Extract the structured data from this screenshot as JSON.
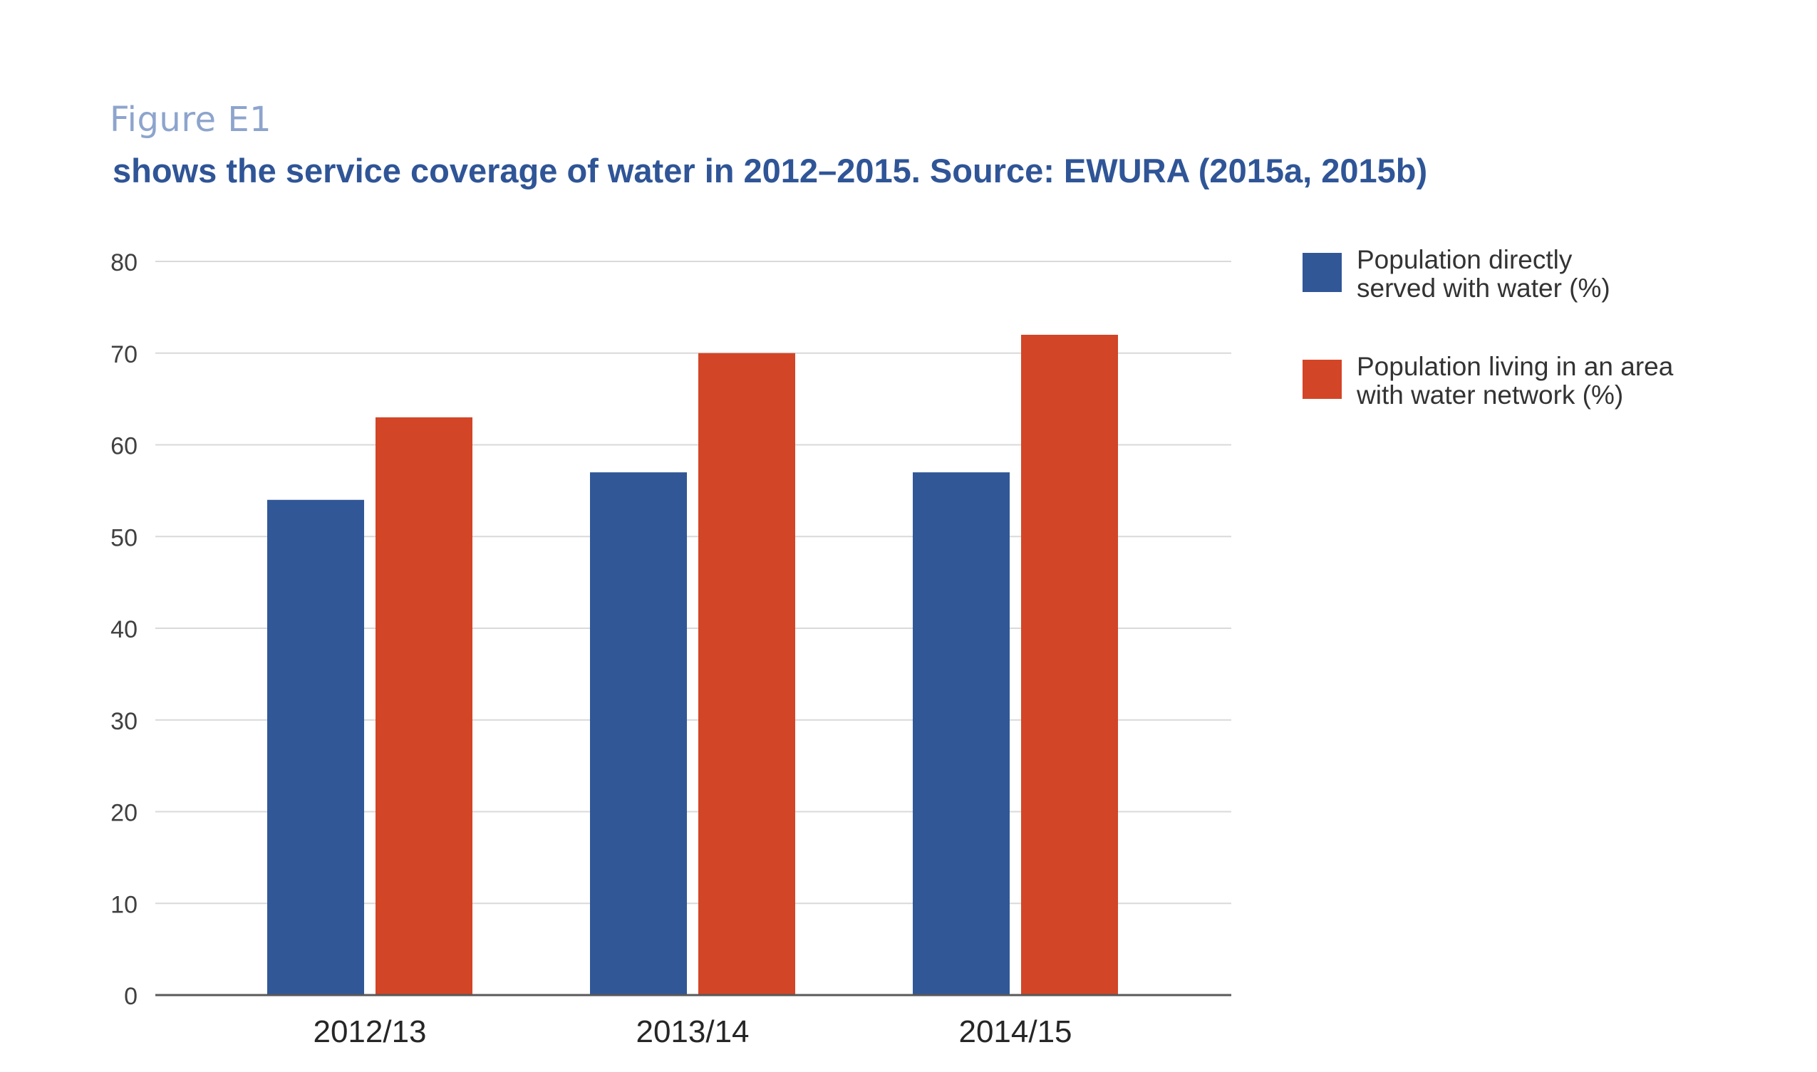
{
  "figure": {
    "label": "Figure E1",
    "title": " shows the service coverage of water in 2012–2015. Source: EWURA (2015a, 2015b)"
  },
  "chart_data": {
    "type": "bar",
    "categories": [
      "2012/13",
      "2013/14",
      "2014/15"
    ],
    "series": [
      {
        "name": "Population directly served with water (%)",
        "values": [
          54,
          57,
          57
        ],
        "color": "#315797"
      },
      {
        "name": "Population living in an area with water network (%)",
        "values": [
          63,
          70,
          72
        ],
        "color": "#d34527"
      }
    ],
    "ylim": [
      0,
      80
    ],
    "yticks": [
      0,
      10,
      20,
      30,
      40,
      50,
      60,
      70,
      80
    ],
    "xlabel": "",
    "ylabel": "",
    "grid": true,
    "legend_position": "right",
    "colors": {
      "grid": "#d9d9d9",
      "axis": "#595959",
      "tick_text": "#404040"
    }
  },
  "legend": {
    "items": [
      {
        "line1": "Population directly",
        "line2": "served with water (%)",
        "color": "#315797"
      },
      {
        "line1": "Population living in an area",
        "line2": "with water network (%)",
        "color": "#d34527"
      }
    ]
  }
}
